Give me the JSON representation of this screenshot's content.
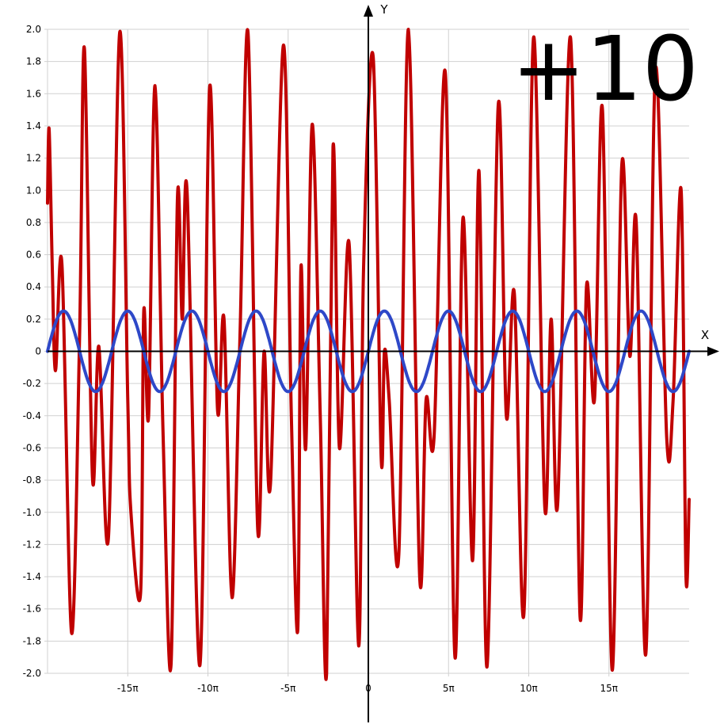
{
  "corner_label": "+10",
  "colors": {
    "red_series": "#c00000",
    "blue_series": "#2e48c8",
    "grid": "#d0d0d0",
    "axis": "#000000",
    "background": "#ffffff"
  },
  "chart_data": {
    "type": "line",
    "title": "",
    "xlabel": "X",
    "ylabel": "Y",
    "xlim_pi": [
      -20,
      20
    ],
    "ylim": [
      -2,
      2
    ],
    "grid": true,
    "legend": "none",
    "x_ticks": [
      {
        "pi": -15,
        "label": "-15π"
      },
      {
        "pi": -10,
        "label": "-10π"
      },
      {
        "pi": -5,
        "label": "-5π"
      },
      {
        "pi": 0,
        "label": "0"
      },
      {
        "pi": 5,
        "label": "5π"
      },
      {
        "pi": 10,
        "label": "10π"
      },
      {
        "pi": 15,
        "label": "15π"
      }
    ],
    "y_ticks": [
      {
        "v": 2.0,
        "label": "2.0"
      },
      {
        "v": 1.8,
        "label": "1.8"
      },
      {
        "v": 1.6,
        "label": "1.6"
      },
      {
        "v": 1.4,
        "label": "1.4"
      },
      {
        "v": 1.2,
        "label": "1.2"
      },
      {
        "v": 1.0,
        "label": "1.0"
      },
      {
        "v": 0.8,
        "label": "0.8"
      },
      {
        "v": 0.6,
        "label": "0.6"
      },
      {
        "v": 0.4,
        "label": "0.4"
      },
      {
        "v": 0.2,
        "label": "0.2"
      },
      {
        "v": 0,
        "label": "0"
      },
      {
        "v": -0.2,
        "label": "-0.2"
      },
      {
        "v": -0.4,
        "label": "-0.4"
      },
      {
        "v": -0.6,
        "label": "-0.6"
      },
      {
        "v": -0.8,
        "label": "-0.8"
      },
      {
        "v": -1.0,
        "label": "-1.0"
      },
      {
        "v": -1.2,
        "label": "-1.2"
      },
      {
        "v": -1.4,
        "label": "-1.4"
      },
      {
        "v": -1.6,
        "label": "-1.6"
      },
      {
        "v": -1.8,
        "label": "-1.8"
      },
      {
        "v": -2.0,
        "label": "-2.0"
      }
    ],
    "series": [
      {
        "color": "#c00000",
        "points_xpi_y": [
          [
            -20.0,
            0.92
          ],
          [
            -19.9,
            1.38
          ],
          [
            -19.7,
            0.5
          ],
          [
            -19.5,
            -0.12
          ],
          [
            -19.1,
            0.54
          ],
          [
            -18.5,
            -1.75
          ],
          [
            -18.0,
            0.1
          ],
          [
            -17.7,
            1.88
          ],
          [
            -17.2,
            -0.78
          ],
          [
            -16.8,
            0.03
          ],
          [
            -16.2,
            -1.15
          ],
          [
            -15.5,
            1.98
          ],
          [
            -15.0,
            -0.3
          ],
          [
            -14.8,
            -1.0
          ],
          [
            -14.2,
            -1.5
          ],
          [
            -14.0,
            0.25
          ],
          [
            -13.7,
            -0.4
          ],
          [
            -13.3,
            1.65
          ],
          [
            -12.8,
            -0.5
          ],
          [
            -12.3,
            -1.95
          ],
          [
            -11.9,
            0.95
          ],
          [
            -11.6,
            0.2
          ],
          [
            -11.3,
            0.99
          ],
          [
            -10.5,
            -1.95
          ],
          [
            -9.9,
            1.63
          ],
          [
            -9.4,
            -0.36
          ],
          [
            -9.0,
            0.2
          ],
          [
            -8.5,
            -1.53
          ],
          [
            -8.0,
            0.1
          ],
          [
            -7.5,
            1.98
          ],
          [
            -6.9,
            -1.1
          ],
          [
            -6.5,
            0.0
          ],
          [
            -6.1,
            -0.82
          ],
          [
            -5.3,
            1.9
          ],
          [
            -4.8,
            -0.4
          ],
          [
            -4.4,
            -1.73
          ],
          [
            -4.2,
            0.52
          ],
          [
            -3.9,
            -0.6
          ],
          [
            -3.5,
            1.41
          ],
          [
            -3.0,
            -0.4
          ],
          [
            -2.6,
            -2.0
          ],
          [
            -2.2,
            1.27
          ],
          [
            -1.8,
            -0.6
          ],
          [
            -1.2,
            0.67
          ],
          [
            -0.6,
            -1.83
          ],
          [
            -0.3,
            0.5
          ],
          [
            0.3,
            1.83
          ],
          [
            0.8,
            -0.66
          ],
          [
            1.0,
            0.0
          ],
          [
            1.3,
            -0.3
          ],
          [
            1.9,
            -1.26
          ],
          [
            2.5,
            2.0
          ],
          [
            3.2,
            -1.4
          ],
          [
            3.6,
            -0.3
          ],
          [
            4.1,
            -0.53
          ],
          [
            4.8,
            1.73
          ],
          [
            5.4,
            -1.9
          ],
          [
            5.9,
            0.83
          ],
          [
            6.5,
            -1.3
          ],
          [
            6.9,
            1.12
          ],
          [
            7.4,
            -1.96
          ],
          [
            8.1,
            1.53
          ],
          [
            8.6,
            -0.4
          ],
          [
            9.1,
            0.36
          ],
          [
            9.7,
            -1.63
          ],
          [
            10.3,
            1.95
          ],
          [
            11.0,
            -0.97
          ],
          [
            11.4,
            0.2
          ],
          [
            11.8,
            -0.95
          ],
          [
            12.6,
            1.95
          ],
          [
            13.2,
            -1.65
          ],
          [
            13.6,
            0.4
          ],
          [
            14.1,
            -0.3
          ],
          [
            14.6,
            1.5
          ],
          [
            15.2,
            -1.98
          ],
          [
            15.8,
            1.15
          ],
          [
            16.3,
            -0.03
          ],
          [
            16.7,
            0.8
          ],
          [
            17.3,
            -1.88
          ],
          [
            17.9,
            1.75
          ],
          [
            18.6,
            -0.54
          ],
          [
            19.0,
            -0.3
          ],
          [
            19.5,
            1.0
          ],
          [
            19.8,
            -1.38
          ],
          [
            20.0,
            -0.92
          ]
        ]
      },
      {
        "color": "#2e48c8",
        "function": "0.25*sin(x/2)",
        "amplitude": 0.25
      }
    ]
  }
}
